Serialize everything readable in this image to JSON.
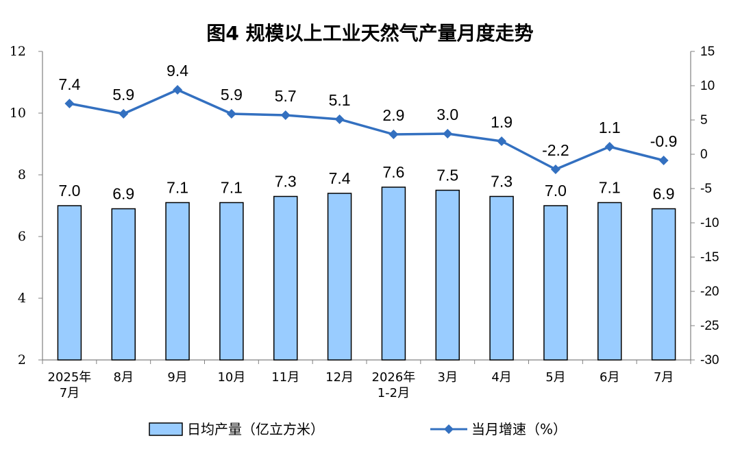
{
  "chart_data": {
    "type": "bar",
    "title": "图4  规模以上工业天然气产量月度走势",
    "categories": [
      [
        "2025年",
        "7月"
      ],
      [
        "8月"
      ],
      [
        "9月"
      ],
      [
        "10月"
      ],
      [
        "11月"
      ],
      [
        "12月"
      ],
      [
        "2026年",
        "1-2月"
      ],
      [
        "3月"
      ],
      [
        "4月"
      ],
      [
        "5月"
      ],
      [
        "6月"
      ],
      [
        "7月"
      ]
    ],
    "series": [
      {
        "name": "日均产量（亿立方米）",
        "type": "bar",
        "axis": "left",
        "values": [
          7.0,
          6.9,
          7.1,
          7.1,
          7.3,
          7.4,
          7.6,
          7.5,
          7.3,
          7.0,
          7.1,
          6.9
        ],
        "labels": [
          "7.0",
          "6.9",
          "7.1",
          "7.1",
          "7.3",
          "7.4",
          "7.6",
          "7.5",
          "7.3",
          "7.0",
          "7.1",
          "6.9"
        ]
      },
      {
        "name": "当月增速（%）",
        "type": "line",
        "axis": "right",
        "values": [
          7.4,
          5.9,
          9.4,
          5.9,
          5.7,
          5.1,
          2.9,
          3.0,
          1.9,
          -2.2,
          1.1,
          -0.9
        ],
        "labels": [
          "7.4",
          "5.9",
          "9.4",
          "5.9",
          "5.7",
          "5.1",
          "2.9",
          "3.0",
          "1.9",
          "-2.2",
          "1.1",
          "-0.9"
        ]
      }
    ],
    "y_left": {
      "min": 2,
      "max": 12,
      "ticks": [
        2,
        4,
        6,
        8,
        10,
        12
      ]
    },
    "y_right": {
      "min": -30,
      "max": 15,
      "ticks": [
        -30,
        -25,
        -20,
        -15,
        -10,
        -5,
        0,
        5,
        10,
        15
      ]
    },
    "grid": false,
    "legend_position": "bottom",
    "colors": {
      "bar_fill": "#99ccff",
      "bar_stroke": "#000000",
      "line": "#3370c0",
      "axis": "#808080"
    }
  }
}
